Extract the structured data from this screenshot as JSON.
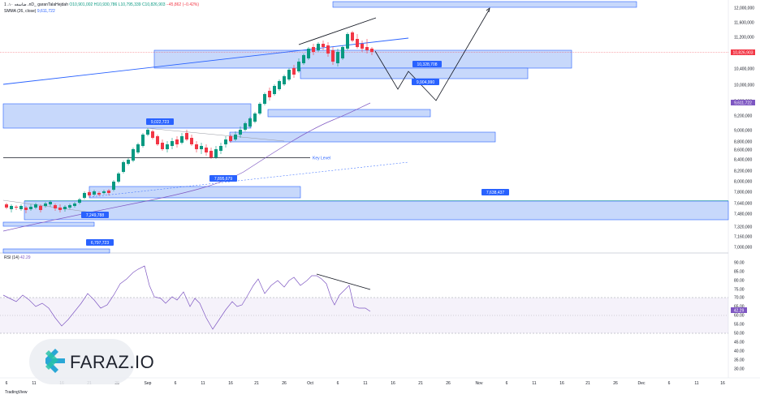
{
  "header": {
    "symbol_line": "1 ،ضاسغه ۱۰ ،nD_ garanTalaHejdah",
    "ohlc": [
      "O10,901,002",
      "H10,930,786",
      "L10,795,339",
      "C10,826,903",
      "−45,862 (−0.42%)"
    ],
    "sma_label": "SMMA (26, close)",
    "sma_value": "9,611,722",
    "rsi_label": "RSI (14)",
    "rsi_value": "42.29"
  },
  "price_axis": {
    "ticks": [
      "12,000,000",
      "11,600,000",
      "11,200,000",
      "10,800,000",
      "10,400,000",
      "10,000,000",
      "9,600,000",
      "9,200,000",
      "9,000,000",
      "8,800,000",
      "8,600,000",
      "8,400,000",
      "8,200,000",
      "8,000,000",
      "7,800,000",
      "7,640,000",
      "7,480,000",
      "7,320,000",
      "7,160,000",
      "7,000,000",
      "6,850,000"
    ],
    "last_price": "10,826,903",
    "sma_price": "9,611,722"
  },
  "rsi_axis": {
    "ticks": [
      "90.00",
      "85.00",
      "80.00",
      "75.00",
      "70.00",
      "65.00",
      "60.00",
      "55.00",
      "50.00",
      "45.00",
      "40.00",
      "35.00",
      "30.00"
    ],
    "current": "42.29"
  },
  "time_axis": [
    "6",
    "11",
    "16",
    "21",
    "26",
    "Sep",
    "6",
    "11",
    "16",
    "21",
    "26",
    "Oct",
    "6",
    "11",
    "16",
    "21",
    "26",
    "Nov",
    "6",
    "11",
    "16",
    "21",
    "26",
    "Dec",
    "6",
    "11",
    "16"
  ],
  "annotations": {
    "key_level": "Key Level",
    "labels": [
      "9,022,723",
      "7,895,679",
      "7,249,788",
      "6,797,723",
      "10,328,708",
      "9,904,990",
      "7,638,437"
    ]
  },
  "branding": {
    "logo_text": "FARAZ.IO",
    "tradingview": "TradingView"
  },
  "colors": {
    "up": "#089981",
    "down": "#f23645",
    "zone": "#c7d8fb",
    "zone_border": "#2962ff",
    "label_bg": "#2962ff",
    "rsi": "#7e57c2"
  },
  "chart_data": {
    "type": "candlestick",
    "symbol": "garanTalaHejdah",
    "ohlc_last": {
      "open": 10901002,
      "high": 10930786,
      "low": 10795339,
      "close": 10826903,
      "change": -45862,
      "change_pct": -0.42
    },
    "sma_26": 9611722,
    "rsi_14": 42.29,
    "ylim": [
      6850000,
      12000000
    ],
    "rsi_ylim": [
      30,
      90
    ]
  }
}
